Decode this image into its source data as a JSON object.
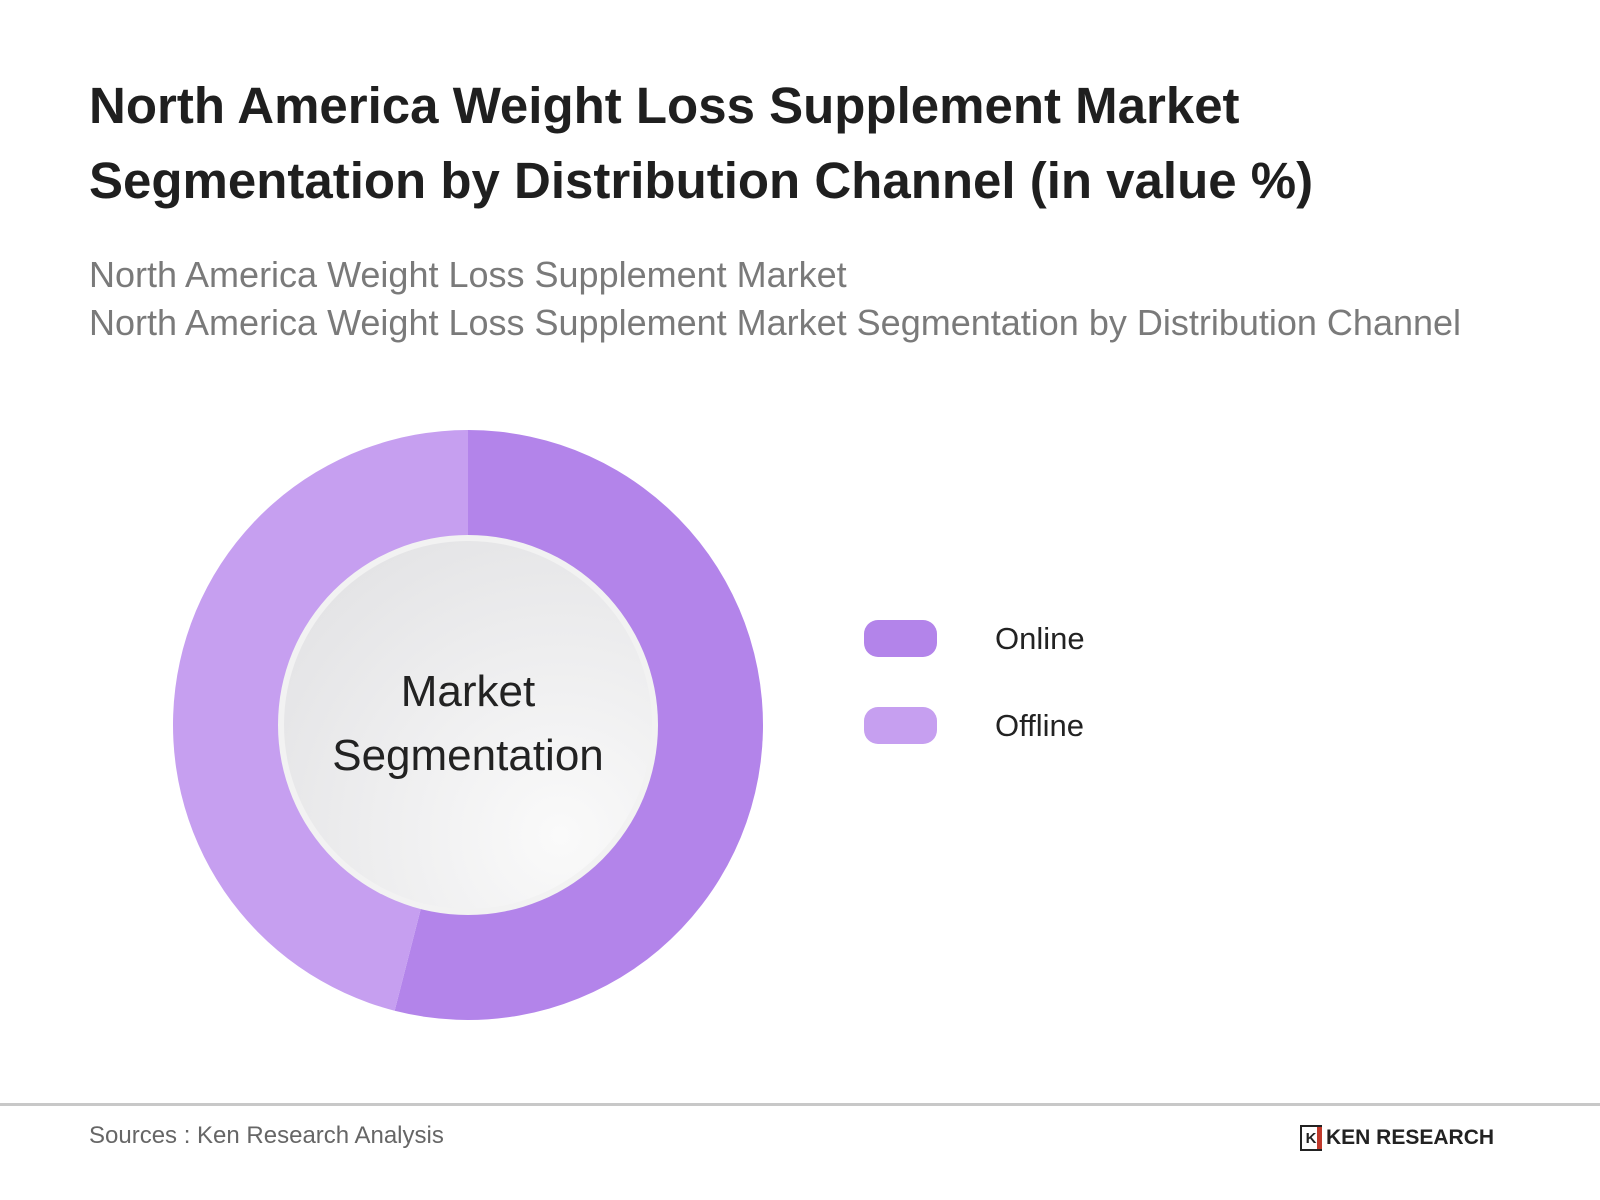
{
  "title": "North America Weight Loss Supplement Market Segmentation by Distribution Channel (in value %)",
  "subtitle_line1": "North America Weight Loss Supplement Market",
  "subtitle_line2": "North America Weight Loss Supplement Market Segmentation by Distribution Channel",
  "chart_data": {
    "type": "pie",
    "variant": "donut",
    "title": "North America Weight Loss Supplement Market Segmentation by Distribution Channel (in value %)",
    "center_label": "Market Segmentation",
    "categories": [
      "Online",
      "Offline"
    ],
    "values": [
      54,
      46
    ],
    "colors": [
      "#b384ea",
      "#c69ff0"
    ],
    "legend_position": "right"
  },
  "footer": {
    "sources": "Sources : Ken Research Analysis",
    "logo_text": "KEN RESEARCH"
  }
}
